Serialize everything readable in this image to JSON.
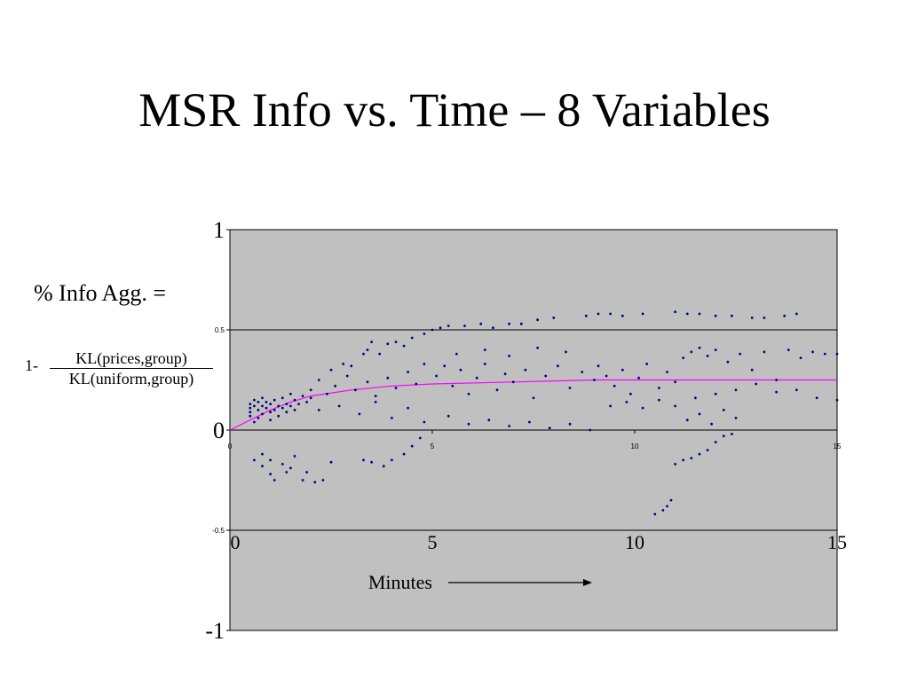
{
  "slide": {
    "title": "MSR Info vs. Time – 8 Variables"
  },
  "formula": {
    "head": "% Info Agg. =",
    "prefix": "1-",
    "numerator": "KL(prices,group)",
    "denominator": "KL(uniform,group)"
  },
  "chart_data": {
    "type": "scatter",
    "title": "",
    "xlabel": "Minutes",
    "ylabel": "% Info Agg.",
    "xlim": [
      0,
      15
    ],
    "ylim": [
      -1,
      1
    ],
    "grid": true,
    "plot_background": "#c0c0c0",
    "point_color": "#000080",
    "trend_color": "#ff00ff",
    "y_ticks_major": [
      {
        "value": 1,
        "label": "1"
      },
      {
        "value": 0,
        "label": "0"
      },
      {
        "value": -1,
        "label": "-1"
      }
    ],
    "y_ticks_minor": [
      {
        "value": 0.5,
        "label": "0.5"
      },
      {
        "value": -0.5,
        "label": "-0.5"
      }
    ],
    "x_ticks_minor": [
      {
        "value": 0,
        "label": "0"
      },
      {
        "value": 5,
        "label": "5"
      },
      {
        "value": 10,
        "label": "10"
      },
      {
        "value": 15,
        "label": "15"
      }
    ],
    "x_ticks_major": [
      {
        "value": 0,
        "label": "0"
      },
      {
        "value": 5,
        "label": "5"
      },
      {
        "value": 10,
        "label": "10"
      },
      {
        "value": 15,
        "label": "15"
      }
    ],
    "series": [
      {
        "values": [
          [
            0.5,
            0.13
          ],
          [
            0.5,
            0.11
          ],
          [
            0.5,
            0.09
          ],
          [
            0.5,
            0.07
          ],
          [
            0.6,
            0.15
          ],
          [
            0.6,
            0.12
          ],
          [
            0.6,
            0.04
          ],
          [
            0.7,
            0.14
          ],
          [
            0.7,
            0.1
          ],
          [
            0.7,
            0.06
          ],
          [
            0.8,
            0.16
          ],
          [
            0.8,
            0.12
          ],
          [
            0.8,
            0.08
          ],
          [
            0.9,
            0.11
          ],
          [
            0.9,
            0.14
          ],
          [
            1.0,
            0.09
          ],
          [
            1.0,
            0.13
          ],
          [
            1.0,
            0.05
          ],
          [
            1.1,
            0.15
          ],
          [
            1.1,
            0.1
          ],
          [
            1.2,
            0.12
          ],
          [
            1.2,
            0.07
          ],
          [
            1.3,
            0.16
          ],
          [
            1.3,
            0.11
          ],
          [
            1.4,
            0.09
          ],
          [
            1.4,
            0.13
          ],
          [
            1.5,
            0.12
          ],
          [
            1.5,
            0.18
          ],
          [
            1.6,
            0.1
          ],
          [
            1.6,
            0.15
          ],
          [
            1.7,
            0.13
          ],
          [
            1.8,
            0.17
          ],
          [
            1.9,
            0.14
          ],
          [
            2.0,
            0.2
          ],
          [
            2.0,
            0.16
          ],
          [
            0.6,
            -0.15
          ],
          [
            0.8,
            -0.12
          ],
          [
            0.8,
            -0.18
          ],
          [
            1.0,
            -0.22
          ],
          [
            1.0,
            -0.15
          ],
          [
            1.1,
            -0.25
          ],
          [
            1.3,
            -0.17
          ],
          [
            1.4,
            -0.21
          ],
          [
            1.5,
            -0.19
          ],
          [
            1.6,
            -0.13
          ],
          [
            1.8,
            -0.25
          ],
          [
            1.9,
            -0.21
          ],
          [
            2.1,
            -0.26
          ],
          [
            2.3,
            -0.25
          ],
          [
            2.5,
            -0.16
          ],
          [
            2.5,
            0.3
          ],
          [
            2.8,
            0.33
          ],
          [
            3.0,
            0.32
          ],
          [
            3.3,
            0.38
          ],
          [
            3.4,
            0.4
          ],
          [
            3.5,
            0.44
          ],
          [
            3.7,
            0.38
          ],
          [
            3.9,
            0.43
          ],
          [
            4.1,
            0.44
          ],
          [
            4.3,
            0.42
          ],
          [
            4.5,
            0.46
          ],
          [
            3.3,
            -0.15
          ],
          [
            3.5,
            -0.16
          ],
          [
            3.8,
            -0.18
          ],
          [
            4.0,
            -0.15
          ],
          [
            4.3,
            -0.12
          ],
          [
            4.5,
            -0.08
          ],
          [
            4.7,
            -0.04
          ],
          [
            2.2,
            0.25
          ],
          [
            2.4,
            0.18
          ],
          [
            2.6,
            0.22
          ],
          [
            2.9,
            0.27
          ],
          [
            3.1,
            0.2
          ],
          [
            3.4,
            0.24
          ],
          [
            3.6,
            0.17
          ],
          [
            3.9,
            0.26
          ],
          [
            4.1,
            0.21
          ],
          [
            4.4,
            0.29
          ],
          [
            4.6,
            0.23
          ],
          [
            4.8,
            0.33
          ],
          [
            2.2,
            0.1
          ],
          [
            2.7,
            0.12
          ],
          [
            3.2,
            0.08
          ],
          [
            3.6,
            0.14
          ],
          [
            4.0,
            0.06
          ],
          [
            4.4,
            0.11
          ],
          [
            4.8,
            0.04
          ],
          [
            4.8,
            0.48
          ],
          [
            5.0,
            0.5
          ],
          [
            5.2,
            0.51
          ],
          [
            5.4,
            0.52
          ],
          [
            5.8,
            0.52
          ],
          [
            6.2,
            0.53
          ],
          [
            6.5,
            0.51
          ],
          [
            6.9,
            0.53
          ],
          [
            7.2,
            0.53
          ],
          [
            7.6,
            0.55
          ],
          [
            8.0,
            0.56
          ],
          [
            5.1,
            0.27
          ],
          [
            5.3,
            0.32
          ],
          [
            5.5,
            0.22
          ],
          [
            5.7,
            0.3
          ],
          [
            5.9,
            0.18
          ],
          [
            6.1,
            0.26
          ],
          [
            6.3,
            0.33
          ],
          [
            6.6,
            0.2
          ],
          [
            6.8,
            0.28
          ],
          [
            7.0,
            0.24
          ],
          [
            7.3,
            0.3
          ],
          [
            7.5,
            0.16
          ],
          [
            7.8,
            0.27
          ],
          [
            8.1,
            0.32
          ],
          [
            8.4,
            0.21
          ],
          [
            8.7,
            0.29
          ],
          [
            9.0,
            0.25
          ],
          [
            5.4,
            0.07
          ],
          [
            5.9,
            0.03
          ],
          [
            6.4,
            0.05
          ],
          [
            6.9,
            0.02
          ],
          [
            7.4,
            0.04
          ],
          [
            7.9,
            0.01
          ],
          [
            8.4,
            0.03
          ],
          [
            8.9,
            0.0
          ],
          [
            5.6,
            0.38
          ],
          [
            6.3,
            0.4
          ],
          [
            6.9,
            0.37
          ],
          [
            7.6,
            0.41
          ],
          [
            8.3,
            0.39
          ],
          [
            8.8,
            0.57
          ],
          [
            9.1,
            0.58
          ],
          [
            9.4,
            0.58
          ],
          [
            9.7,
            0.57
          ],
          [
            10.2,
            0.58
          ],
          [
            11.0,
            0.59
          ],
          [
            11.3,
            0.58
          ],
          [
            11.6,
            0.58
          ],
          [
            12.0,
            0.57
          ],
          [
            12.4,
            0.57
          ],
          [
            12.9,
            0.56
          ],
          [
            13.2,
            0.56
          ],
          [
            13.7,
            0.57
          ],
          [
            14.0,
            0.58
          ],
          [
            9.1,
            0.32
          ],
          [
            9.3,
            0.27
          ],
          [
            9.5,
            0.22
          ],
          [
            9.7,
            0.3
          ],
          [
            9.9,
            0.18
          ],
          [
            10.1,
            0.26
          ],
          [
            10.3,
            0.33
          ],
          [
            10.6,
            0.21
          ],
          [
            10.8,
            0.29
          ],
          [
            11.0,
            0.24
          ],
          [
            11.2,
            0.36
          ],
          [
            11.4,
            0.39
          ],
          [
            11.6,
            0.41
          ],
          [
            11.8,
            0.37
          ],
          [
            12.0,
            0.4
          ],
          [
            12.3,
            0.34
          ],
          [
            12.6,
            0.38
          ],
          [
            12.9,
            0.3
          ],
          [
            13.2,
            0.39
          ],
          [
            13.5,
            0.25
          ],
          [
            13.8,
            0.4
          ],
          [
            14.1,
            0.36
          ],
          [
            14.4,
            0.39
          ],
          [
            14.7,
            0.38
          ],
          [
            15.0,
            0.38
          ],
          [
            9.4,
            0.12
          ],
          [
            9.8,
            0.14
          ],
          [
            10.2,
            0.11
          ],
          [
            10.6,
            0.15
          ],
          [
            11.0,
            0.12
          ],
          [
            11.5,
            0.16
          ],
          [
            12.0,
            0.18
          ],
          [
            12.5,
            0.2
          ],
          [
            13.0,
            0.23
          ],
          [
            13.5,
            0.19
          ],
          [
            14.0,
            0.2
          ],
          [
            14.5,
            0.16
          ],
          [
            15.0,
            0.15
          ],
          [
            10.5,
            -0.42
          ],
          [
            10.7,
            -0.4
          ],
          [
            10.8,
            -0.38
          ],
          [
            10.9,
            -0.35
          ],
          [
            11.0,
            -0.17
          ],
          [
            11.2,
            -0.15
          ],
          [
            11.4,
            -0.14
          ],
          [
            11.6,
            -0.12
          ],
          [
            11.8,
            -0.1
          ],
          [
            12.0,
            -0.06
          ],
          [
            12.2,
            -0.03
          ],
          [
            12.4,
            -0.02
          ],
          [
            11.3,
            0.05
          ],
          [
            11.6,
            0.08
          ],
          [
            11.9,
            0.03
          ],
          [
            12.2,
            0.1
          ],
          [
            12.5,
            0.06
          ]
        ]
      },
      {
        "type": "line",
        "values": [
          [
            0,
            0.0
          ],
          [
            0.5,
            0.05
          ],
          [
            1.0,
            0.1
          ],
          [
            1.5,
            0.14
          ],
          [
            2.0,
            0.17
          ],
          [
            3.0,
            0.2
          ],
          [
            4.0,
            0.22
          ],
          [
            5.0,
            0.23
          ],
          [
            7.0,
            0.24
          ],
          [
            9.0,
            0.25
          ],
          [
            11.0,
            0.25
          ],
          [
            13.0,
            0.25
          ],
          [
            15.0,
            0.25
          ]
        ]
      }
    ]
  }
}
